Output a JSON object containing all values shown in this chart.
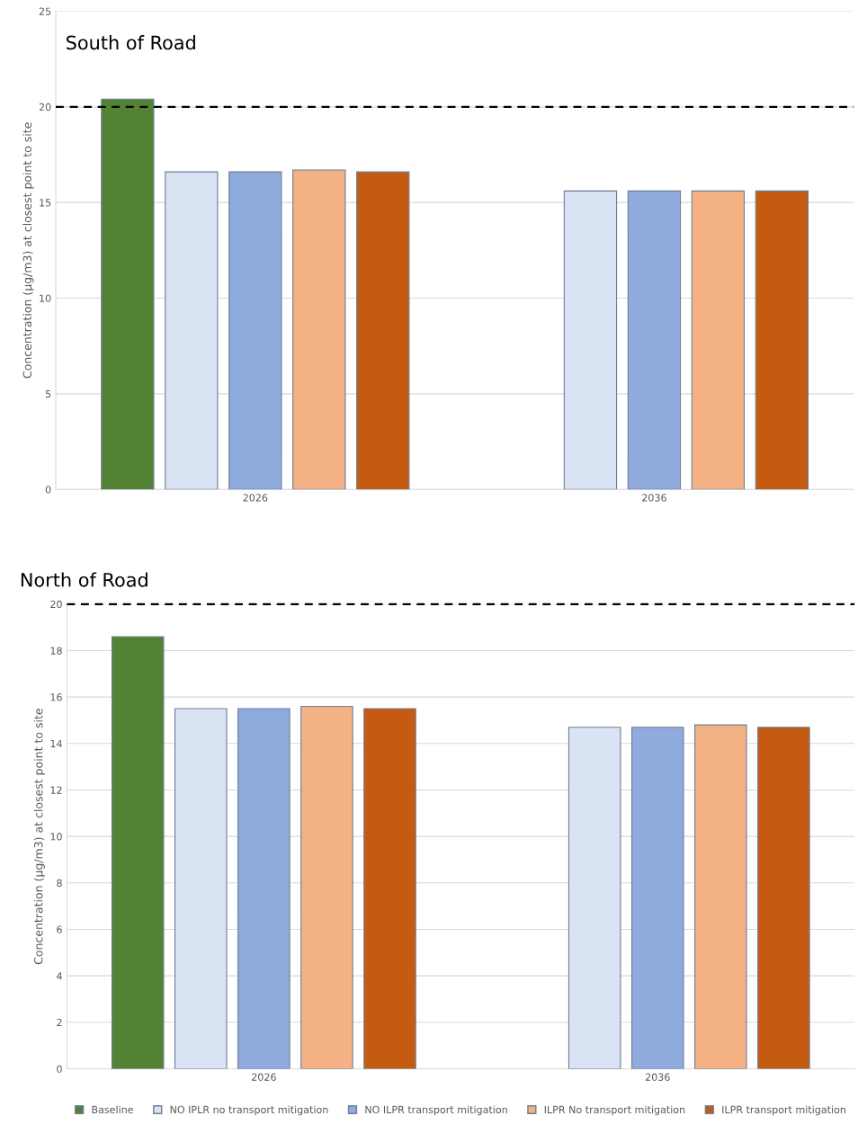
{
  "chart_data": [
    {
      "type": "bar",
      "title": "South of Road",
      "ylabel": "Concentration (µg/m3) at closest point to site",
      "categories": [
        "2026",
        "2036"
      ],
      "ylim": [
        0,
        25
      ],
      "yticks": [
        0,
        5,
        10,
        15,
        20,
        25
      ],
      "grid": "y",
      "ref_lines": [
        {
          "axis": "y",
          "value": 20,
          "color": "#000000",
          "line_style": "dashed"
        }
      ],
      "series": [
        {
          "color": "#548235",
          "values": [
            20.4,
            null
          ]
        },
        {
          "color": "#dae3f3",
          "values": [
            16.6,
            15.6
          ]
        },
        {
          "color": "#8faadc",
          "values": [
            16.6,
            15.6
          ]
        },
        {
          "color": "#f4b183",
          "values": [
            16.7,
            15.6
          ]
        },
        {
          "color": "#c55a11",
          "values": [
            16.6,
            15.6
          ]
        }
      ]
    },
    {
      "type": "bar",
      "title": "North of Road",
      "ylabel": "Concentration (µg/m3) at closest point to site",
      "categories": [
        "2026",
        "2036"
      ],
      "ylim": [
        0,
        20
      ],
      "yticks": [
        0,
        2,
        4,
        6,
        8,
        10,
        12,
        14,
        16,
        18,
        20
      ],
      "grid": "y",
      "legend": "bottom",
      "ref_lines": [
        {
          "axis": "y",
          "value": 20,
          "color": "#000000",
          "line_style": "dashed"
        }
      ],
      "series": [
        {
          "name": "Baseline",
          "color": "#548235",
          "values": [
            18.6,
            null
          ]
        },
        {
          "name": "NO IPLR no transport mitigation",
          "color": "#dae3f3",
          "values": [
            15.5,
            14.7
          ]
        },
        {
          "name": "NO ILPR transport mitigation",
          "color": "#8faadc",
          "values": [
            15.5,
            14.7
          ]
        },
        {
          "name": "ILPR No transport mitigation",
          "color": "#f4b183",
          "values": [
            15.6,
            14.8
          ]
        },
        {
          "name": "ILPR transport mitigation",
          "color": "#c55a11",
          "values": [
            15.5,
            14.7
          ]
        }
      ]
    }
  ]
}
